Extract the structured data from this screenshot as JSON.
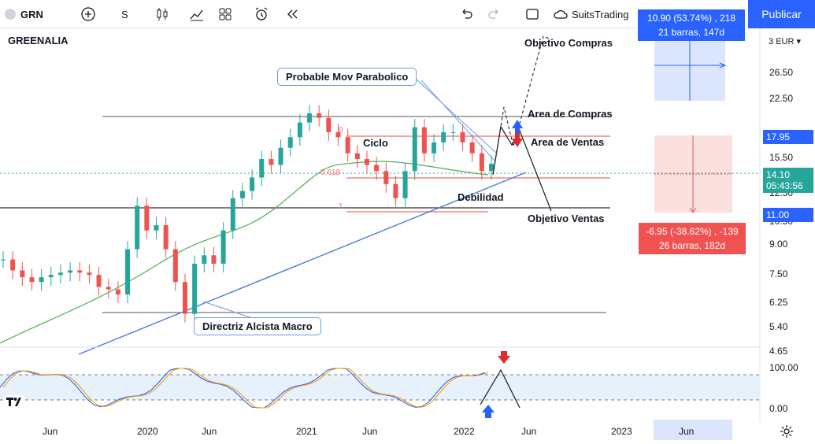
{
  "toolbar": {
    "symbol": "GRN",
    "interval": "S",
    "broker": "SuitsTrading",
    "publish_label": "Publicar"
  },
  "chart": {
    "name": "GREENALIA",
    "currency": "EUR",
    "currency_prefix": "3"
  },
  "y_ticks": [
    "26.50",
    "22.50",
    "15.50",
    "12.50",
    "10.50",
    "9.00",
    "7.50",
    "6.25",
    "5.40",
    "4.65"
  ],
  "price_tags": {
    "top": "17.95",
    "current": "14.10",
    "timer": "05:43:56",
    "bottom": "11.00"
  },
  "x_ticks": [
    "Jun",
    "2020",
    "Jun",
    "2021",
    "Jun",
    "2022",
    "Jun",
    "2023",
    "Jun"
  ],
  "osc_ticks": [
    "100.00",
    "0.00"
  ],
  "annotations": {
    "parabolic": "Probable Mov Parabolico",
    "directriz": "Directriz Alcista Macro",
    "objetivo_compras": "Objetivo Compras",
    "area_compras": "Area de Compras",
    "area_ventas": "Area de Ventas",
    "ciclo": "Ciclo",
    "debilidad": "Debilidad",
    "objetivo_ventas": "Objetivo Ventas",
    "fib_0": "0",
    "fib_618": "0.618",
    "fib_1": "1"
  },
  "long_box": {
    "line1": "10.90 (53.74%) , 218",
    "line2": "21 barras, 147d"
  },
  "short_box": {
    "line1": "-6.95 (-38.62%) , -139",
    "line2": "26 barras, 182d"
  },
  "colors": {
    "up": "#26a69a",
    "down": "#ef5350",
    "trend": "#4a7de0",
    "ma": "#4caf50",
    "blue_accent": "#2962ff"
  },
  "chart_data": {
    "type": "candlestick",
    "title": "GREENALIA",
    "series": [
      {
        "name": "price",
        "values": [
          8.0,
          7.5,
          7.2,
          7.0,
          7.2,
          7.3,
          7.4,
          7.5,
          7.4,
          7.3,
          6.8,
          6.7,
          6.5,
          8.5,
          11.0,
          9.5,
          9.8,
          8.5,
          7.0,
          5.8,
          7.8,
          8.2,
          7.8,
          9.5,
          11.5,
          12.0,
          13.0,
          14.5,
          14.0,
          15.5,
          16.5,
          18.0,
          19.0,
          18.5,
          17.0,
          16.5,
          15.0,
          14.5,
          14.0,
          13.5,
          12.5,
          11.5,
          13.5,
          17.5,
          15.0,
          16.0,
          17.0,
          17.0,
          16.0,
          15.0,
          13.5,
          14.1
        ]
      }
    ],
    "ylim": [
      4.65,
      30
    ],
    "log_scale": true
  }
}
